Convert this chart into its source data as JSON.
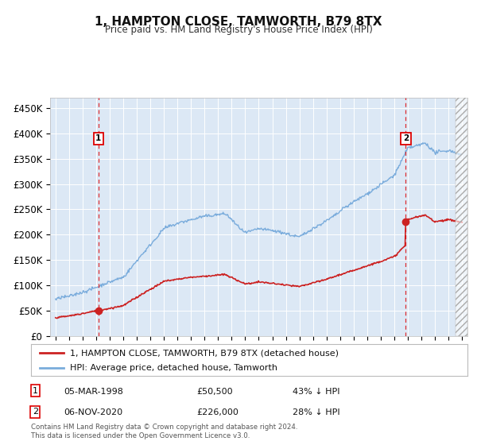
{
  "title": "1, HAMPTON CLOSE, TAMWORTH, B79 8TX",
  "subtitle": "Price paid vs. HM Land Registry's House Price Index (HPI)",
  "hpi_color": "#7aacdc",
  "price_color": "#cc2222",
  "bg_color": "#dce8f5",
  "annotation1_year": 1998.17,
  "annotation1_price": 50500,
  "annotation1_date": "05-MAR-1998",
  "annotation1_text": "43% ↓ HPI",
  "annotation2_year": 2020.84,
  "annotation2_price": 226000,
  "annotation2_date": "06-NOV-2020",
  "annotation2_text": "28% ↓ HPI",
  "ylabel_ticks": [
    "£0",
    "£50K",
    "£100K",
    "£150K",
    "£200K",
    "£250K",
    "£300K",
    "£350K",
    "£400K",
    "£450K"
  ],
  "ytick_values": [
    0,
    50000,
    100000,
    150000,
    200000,
    250000,
    300000,
    350000,
    400000,
    450000
  ],
  "ymax": 470000,
  "xmin": 1994.6,
  "xmax": 2025.4,
  "legend_line1": "1, HAMPTON CLOSE, TAMWORTH, B79 8TX (detached house)",
  "legend_line2": "HPI: Average price, detached house, Tamworth",
  "footer": "Contains HM Land Registry data © Crown copyright and database right 2024.\nThis data is licensed under the Open Government Licence v3.0."
}
